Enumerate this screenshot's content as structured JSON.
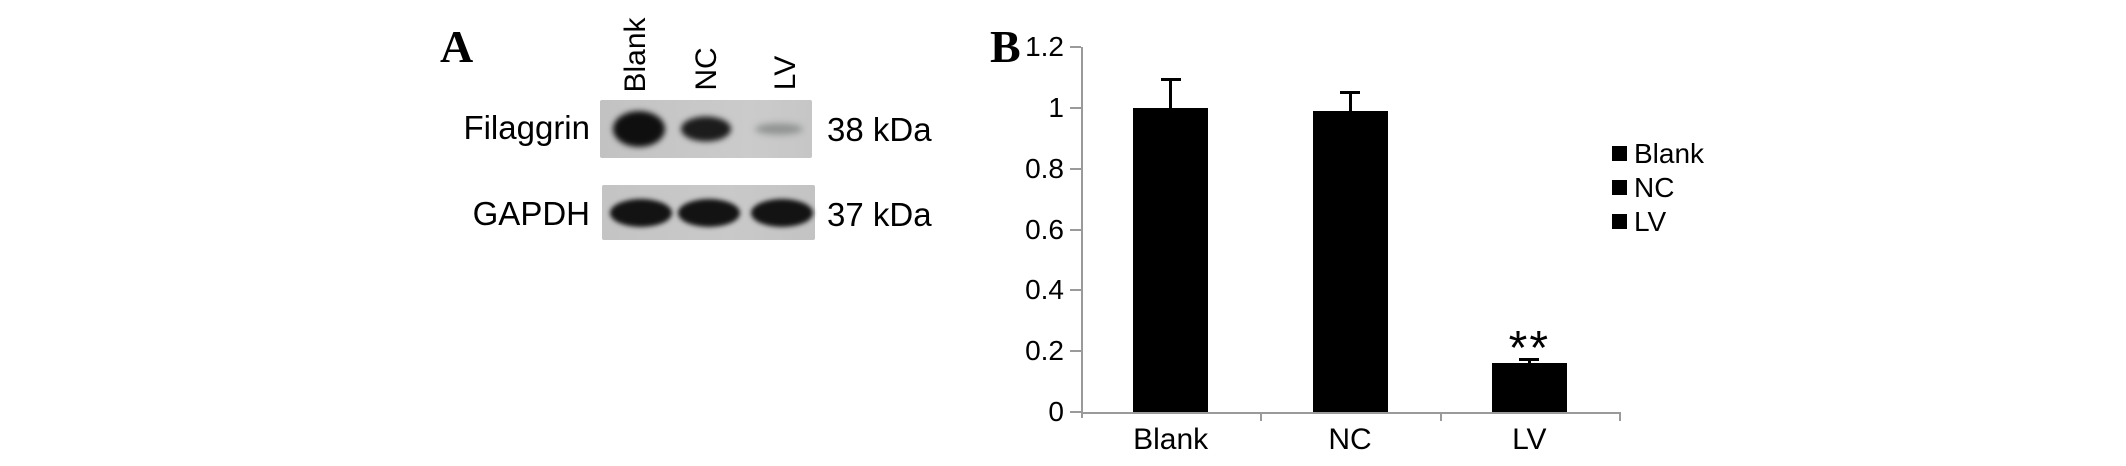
{
  "figure": {
    "panel_a": {
      "label": "A",
      "lane_labels": [
        "Blank",
        "NC",
        "LV"
      ],
      "rows": [
        {
          "protein": "Filaggrin",
          "weight": "38 kDa",
          "bands": [
            "strong",
            "medium",
            "faint"
          ]
        },
        {
          "protein": "GAPDH",
          "weight": "37 kDa",
          "bands": [
            "strong",
            "strong",
            "strong"
          ]
        }
      ]
    },
    "panel_b": {
      "label": "B"
    }
  },
  "chart_data": {
    "type": "bar",
    "title": "",
    "xlabel": "",
    "ylabel": "",
    "categories": [
      "Blank",
      "NC",
      "LV"
    ],
    "values": [
      1.0,
      0.99,
      0.16
    ],
    "errors": [
      0.09,
      0.06,
      0.01
    ],
    "bar_color": "#000000",
    "annotations": [
      {
        "category": "LV",
        "text": "**"
      }
    ],
    "ylim": [
      0,
      1.2
    ],
    "yticks": [
      0,
      0.2,
      0.4,
      0.6,
      0.8,
      1,
      1.2
    ],
    "ytick_labels": [
      "0",
      "0.2",
      "0.4",
      "0.6",
      "0.8",
      "1",
      "1.2"
    ],
    "grid": false,
    "legend": {
      "position": "right",
      "entries": [
        "Blank",
        "NC",
        "LV"
      ]
    }
  }
}
